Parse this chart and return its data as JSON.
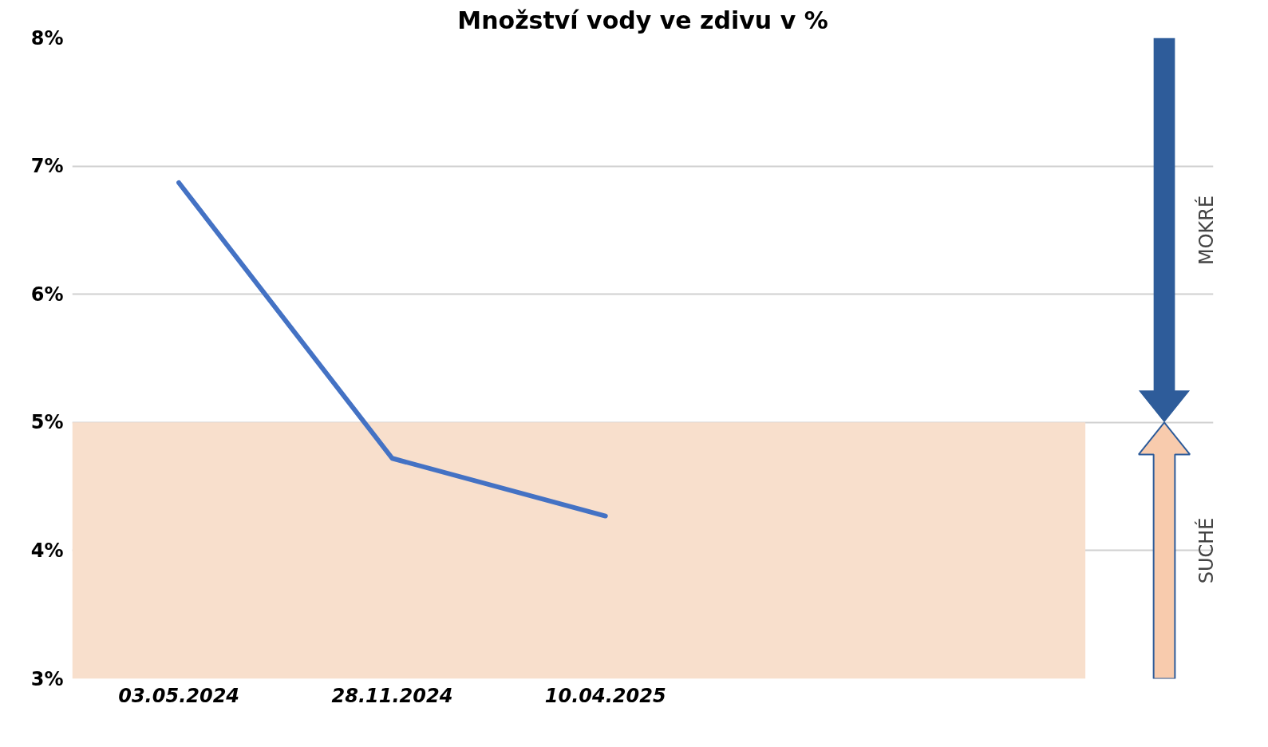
{
  "chart_data": {
    "type": "line",
    "title": "Množství vody ve zdivu v %",
    "categories": [
      "03.05.2024",
      "28.11.2024",
      "10.04.2025",
      null,
      null
    ],
    "series": [
      {
        "color": "#4472c4",
        "values": [
          6.87,
          4.72,
          4.27,
          null,
          null
        ]
      }
    ],
    "ylim": [
      3,
      8
    ],
    "yticks": [
      {
        "value": 3,
        "label": "3%"
      },
      {
        "value": 4,
        "label": "4%"
      },
      {
        "value": 5,
        "label": "5%"
      },
      {
        "value": 6,
        "label": "6%"
      },
      {
        "value": 7,
        "label": "7%"
      },
      {
        "value": 8,
        "label": "8%"
      }
    ],
    "grid": "y",
    "marker": "none",
    "line_style": "solid",
    "bands": [
      {
        "axis": "y",
        "from": 3,
        "to": 5,
        "color": "#f8dfcc"
      }
    ],
    "annotations": [
      "MOKRÉ",
      "SUCHÉ"
    ]
  }
}
